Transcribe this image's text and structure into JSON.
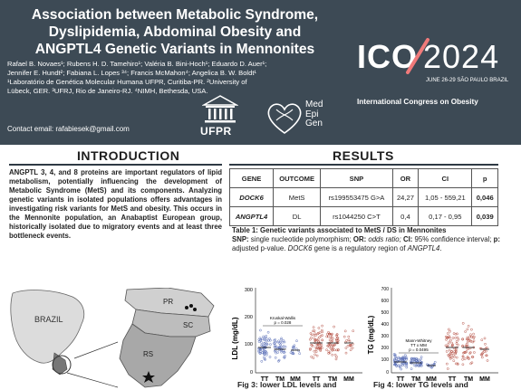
{
  "header": {
    "title_lines": [
      "Association between Metabolic Syndrome,",
      "Dyslipidemia, Abdominal Obesity and",
      "ANGPTL4 Genetic Variants in Mennonites"
    ],
    "authors_line1": "Rafael B. Novaes¹; Rubens H. D. Tamehiro¹; Valéria B. Bini-Hoch¹; Eduardo D. Auer¹;",
    "authors_line2": "Jennifer E. Hundt²; Fabiana L. Lopes ³⁴; Francis McMahon⁴; Angelica B. W. Boldt¹",
    "affil_line1": "¹Laboratório de Genética Molecular Humana UFPR, Curitiba-PR. ²University of",
    "affil_line2": "Lübeck, GER. ³UFRJ, Rio de Janeiro-RJ. ⁴NIMH, Bethesda, USA.",
    "contact": "Contact email: rafabiesek@gmail.com"
  },
  "logos": {
    "ufpr": "UFPR",
    "medepigen_lines": [
      "Med",
      "Epi",
      "Gen"
    ]
  },
  "ico": {
    "mark": "ICO",
    "year": "2024",
    "dates": "JUNE 26-29   SÃO PAULO  BRAZIL",
    "conference": "International Congress on Obesity"
  },
  "sections": {
    "intro": "INTRODUCTION",
    "results": "RESULTS"
  },
  "intro_text": "ANGPTL 3, 4, and 8 proteins are important regulators of lipid metabolism, potentially influencing the development of Metabolic Syndrome (MetS) and its components. Analyzing genetic variants in isolated populations offers advantages in investigating risk variants for MetS and obesity. This occurs in the Mennonite population, an Anabaptist European group, historically isolated due to migratory events and at least three bottleneck events.",
  "map": {
    "country": "BRAZIL",
    "states": [
      "PR",
      "SC",
      "RS"
    ]
  },
  "table": {
    "headers": [
      "GENE",
      "OUTCOME",
      "SNP",
      "OR",
      "CI",
      "p"
    ],
    "rows": [
      [
        "DOCK6",
        "MetS",
        "rs199553475 G>A",
        "24,27",
        "1,05 - 559,21",
        "0,046"
      ],
      [
        "ANGPTL4",
        "DL",
        "rs1044250 C>T",
        "0,4",
        "0,17 - 0,95",
        "0,039"
      ]
    ]
  },
  "caption": {
    "title": "Table 1: Genetic variants associated to MetS / DS in Mennonites",
    "snp_label": "SNP:",
    "snp_text": " single nucleotide polymorphism; ",
    "or_label": "OR:",
    "or_text": " odds ratio; ",
    "ci_label": "CI:",
    "ci_text": " 95% confidence interval; ",
    "p_label": "p:",
    "p_text": " adjusted p-value. ",
    "dock6": "DOCK6",
    "gene_text": " gene is a regulatory region of ",
    "angptl4": "ANGPTL4",
    "end": "."
  },
  "fig3": {
    "ylabel": "LDL (mg/dL)",
    "ticks": [
      "300",
      "200",
      "100",
      "0"
    ],
    "test_label": "Kruskal-Wallis",
    "test_p": "p = 0.028",
    "categories": [
      "TT",
      "TM",
      "MM",
      "TT",
      "TM",
      "MM"
    ],
    "caption": "Fig 3: lower LDL levels and"
  },
  "fig4": {
    "ylabel": "TG (mg/dL)",
    "ticks": [
      "700",
      "600",
      "500",
      "400",
      "300",
      "200",
      "100",
      "0"
    ],
    "test_label": "Mann-Whitney",
    "test_sub": "TT x MM",
    "test_p": "p = 0.0495",
    "categories": [
      "TT",
      "TM",
      "MM",
      "TT",
      "TM",
      "MM"
    ],
    "caption": "Fig 4: lower TG levels and"
  },
  "colors": {
    "header_bg": "#3d4a55",
    "blue_points": "#5a6fb8",
    "red_points": "#b8564a"
  }
}
